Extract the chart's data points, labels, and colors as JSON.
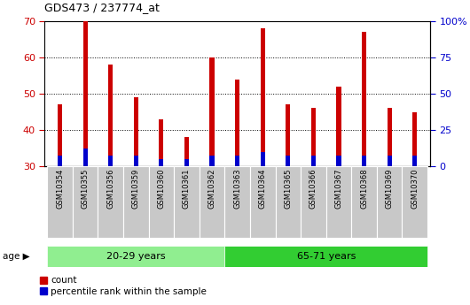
{
  "title": "GDS473 / 237774_at",
  "samples": [
    "GSM10354",
    "GSM10355",
    "GSM10356",
    "GSM10359",
    "GSM10360",
    "GSM10361",
    "GSM10362",
    "GSM10363",
    "GSM10364",
    "GSM10365",
    "GSM10366",
    "GSM10367",
    "GSM10368",
    "GSM10369",
    "GSM10370"
  ],
  "count_values": [
    47,
    70,
    58,
    49,
    43,
    38,
    60,
    54,
    68,
    47,
    46,
    52,
    67,
    46,
    45
  ],
  "percentile_values": [
    3,
    5,
    3,
    3,
    2,
    2,
    3,
    3,
    4,
    3,
    3,
    3,
    3,
    3,
    3
  ],
  "bar_bottom": 30,
  "ylim_left": [
    30,
    70
  ],
  "ylim_right": [
    0,
    100
  ],
  "yticks_left": [
    30,
    40,
    50,
    60,
    70
  ],
  "yticks_right": [
    0,
    25,
    50,
    75,
    100
  ],
  "ytick_labels_right": [
    "0",
    "25",
    "50",
    "75",
    "100%"
  ],
  "color_red": "#CC0000",
  "color_blue": "#0000CC",
  "color_group1_bg": "#90EE90",
  "color_group2_bg": "#32CD32",
  "group1_label": "20-29 years",
  "group2_label": "65-71 years",
  "group1_count": 7,
  "group2_count": 8,
  "age_label": "age",
  "legend_count": "count",
  "legend_percentile": "percentile rank within the sample",
  "bar_width": 0.18,
  "dotted_grid_color": "#000000",
  "left_tick_color": "#CC0000",
  "right_tick_color": "#0000CC",
  "sample_bg_color": "#C8C8C8",
  "fig_width": 5.3,
  "fig_height": 3.45,
  "dpi": 100
}
